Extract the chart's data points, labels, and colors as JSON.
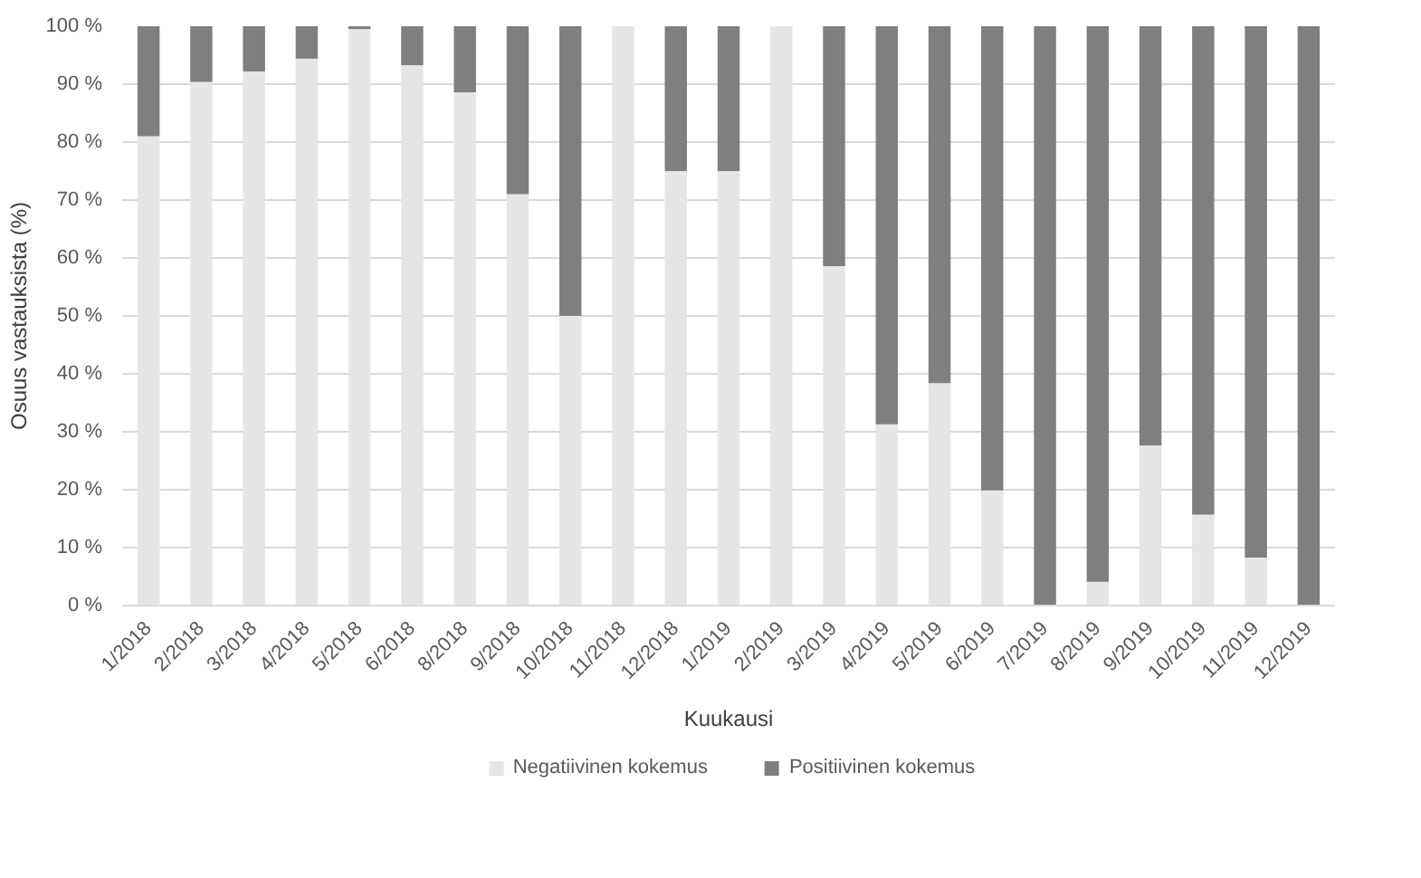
{
  "chart_data": {
    "type": "bar",
    "stacked": true,
    "xlabel": "Kuukausi",
    "ylabel": "Osuus vastauksista (%)",
    "categories": [
      "1/2018",
      "2/2018",
      "3/2018",
      "4/2018",
      "5/2018",
      "6/2018",
      "8/2018",
      "9/2018",
      "10/2018",
      "11/2018",
      "12/2018",
      "1/2019",
      "2/2019",
      "3/2019",
      "4/2019",
      "5/2019",
      "6/2019",
      "7/2019",
      "8/2019",
      "9/2019",
      "10/2019",
      "11/2019",
      "12/2019"
    ],
    "series": [
      {
        "name": "Negatiivinen kokemus",
        "color": "#e7e6e6",
        "values": [
          81,
          90.4,
          92.2,
          94.4,
          99.5,
          93.3,
          88.6,
          71,
          50,
          100,
          75,
          75,
          100,
          58.6,
          31.3,
          38.4,
          19.9,
          0,
          4.1,
          27.6,
          15.7,
          8.3,
          0
        ]
      },
      {
        "name": "Positiivinen kokemus",
        "color": "#7f7f7f",
        "values": [
          19,
          9.6,
          7.8,
          5.6,
          0.5,
          6.7,
          11.4,
          29,
          50,
          0,
          25,
          25,
          0,
          41.4,
          68.7,
          61.6,
          80.1,
          100,
          95.9,
          72.4,
          84.3,
          91.7,
          100
        ]
      }
    ],
    "ylim": [
      0,
      100
    ],
    "yticks": [
      {
        "value": 0,
        "label": "0 %"
      },
      {
        "value": 10,
        "label": "10 %"
      },
      {
        "value": 20,
        "label": "20 %"
      },
      {
        "value": 30,
        "label": "30 %"
      },
      {
        "value": 40,
        "label": "40 %"
      },
      {
        "value": 50,
        "label": "50 %"
      },
      {
        "value": 60,
        "label": "60 %"
      },
      {
        "value": 70,
        "label": "70 %"
      },
      {
        "value": 80,
        "label": "80 %"
      },
      {
        "value": 90,
        "label": "90 %"
      },
      {
        "value": 100,
        "label": "100 %"
      }
    ],
    "grid": "y",
    "legend": "bottom"
  }
}
